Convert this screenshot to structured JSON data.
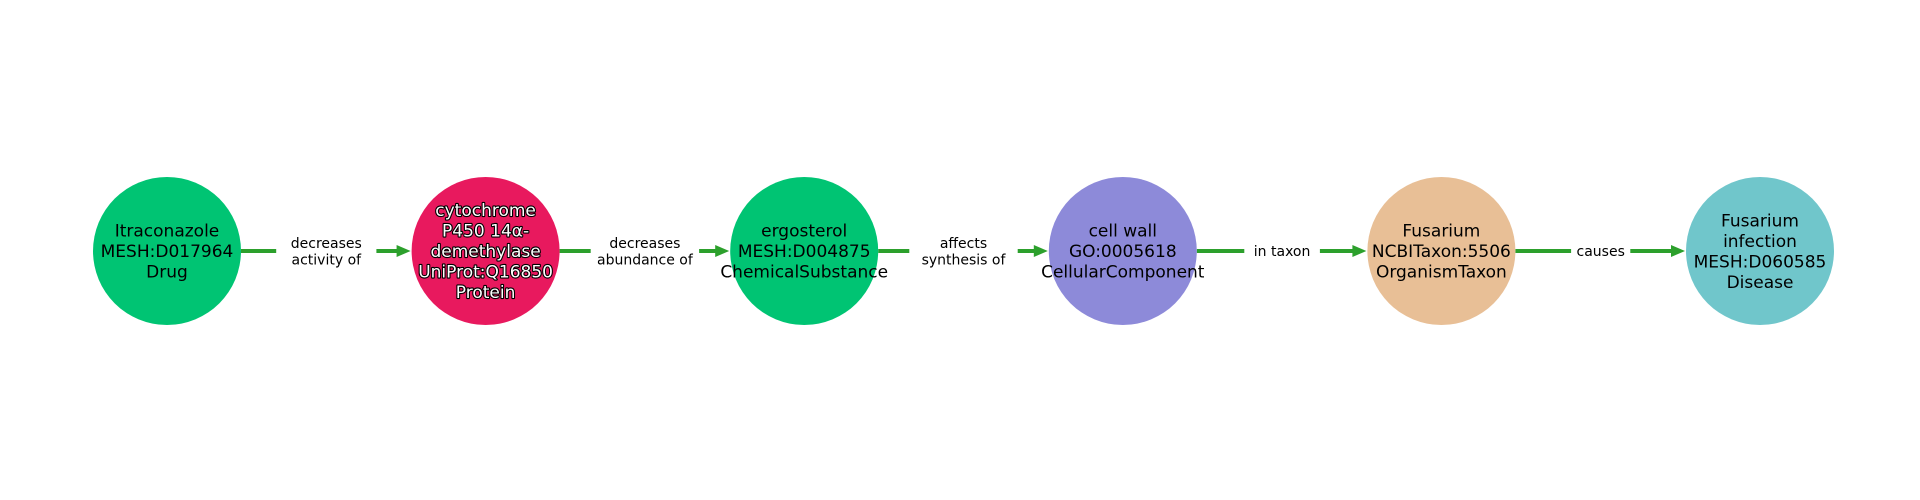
{
  "diagram": {
    "type": "knowledge-graph-path",
    "colors": {
      "edge": "#2ca02c",
      "edge_label_bg": "#ffffff"
    },
    "nodes": [
      {
        "id": "n1",
        "lines": [
          "Itraconazole",
          "MESH:D017964",
          "Drug"
        ],
        "color": "#00c473",
        "text_style": "plain"
      },
      {
        "id": "n2",
        "lines": [
          "cytochrome",
          "P450 14α-",
          "demethylase",
          "UniProt:Q16850",
          "Protein"
        ],
        "color": "#e8195e",
        "text_style": "outlined"
      },
      {
        "id": "n3",
        "lines": [
          "ergosterol",
          "MESH:D004875",
          "ChemicalSubstance"
        ],
        "color": "#00c473",
        "text_style": "plain"
      },
      {
        "id": "n4",
        "lines": [
          "cell wall",
          "GO:0005618",
          "CellularComponent"
        ],
        "color": "#8d8ad9",
        "text_style": "plain"
      },
      {
        "id": "n5",
        "lines": [
          "Fusarium",
          "NCBITaxon:5506",
          "OrganismTaxon"
        ],
        "color": "#e8bf96",
        "text_style": "plain"
      },
      {
        "id": "n6",
        "lines": [
          "Fusarium",
          "infection",
          "MESH:D060585",
          "Disease"
        ],
        "color": "#70c6cb",
        "text_style": "plain"
      }
    ],
    "edges": [
      {
        "from": "n1",
        "to": "n2",
        "label_lines": [
          "decreases",
          "activity of"
        ]
      },
      {
        "from": "n2",
        "to": "n3",
        "label_lines": [
          "decreases",
          "abundance of"
        ]
      },
      {
        "from": "n3",
        "to": "n4",
        "label_lines": [
          "affects",
          "synthesis of"
        ]
      },
      {
        "from": "n4",
        "to": "n5",
        "label_lines": [
          "in taxon"
        ]
      },
      {
        "from": "n5",
        "to": "n6",
        "label_lines": [
          "causes"
        ]
      }
    ]
  }
}
